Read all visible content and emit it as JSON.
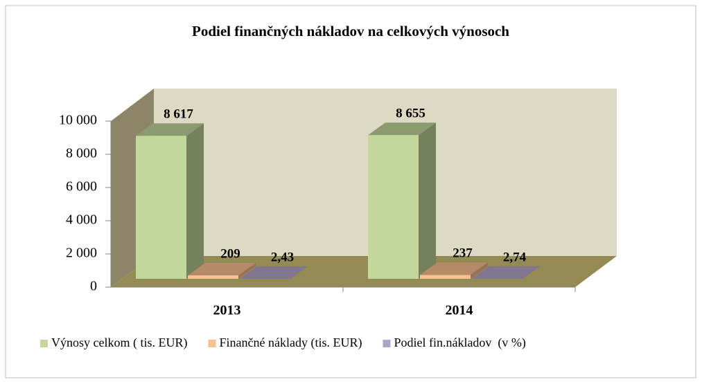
{
  "chart_data": {
    "type": "bar3d",
    "title": "Podiel finančných nákladov na celkových výnosoch",
    "categories": [
      "2013",
      "2014"
    ],
    "series": [
      {
        "name": "Výnosy celkom ( tis. EUR)",
        "color": "#c3d69b",
        "values": [
          8617,
          8655
        ],
        "value_labels": [
          "8 617",
          "8 655"
        ]
      },
      {
        "name": "Finančné náklady (tis. EUR)",
        "color": "#fac090",
        "values": [
          209,
          237
        ]
      },
      {
        "name": "Podiel fin.nákladov  (v %)",
        "color": "#b3a2c7",
        "values": [
          2.43,
          2.74
        ],
        "value_labels": [
          "2,43",
          "2,74"
        ]
      }
    ],
    "ylim": [
      0,
      10000
    ],
    "yticks": [
      0,
      {
        "value": 2000,
        "label": "2 000"
      },
      {
        "value": 4000,
        "label": "4 000"
      },
      {
        "value": 6000,
        "label": "6 000"
      },
      {
        "value": 8000,
        "label": "8 000"
      },
      {
        "value": 10000,
        "label": "10 000"
      }
    ],
    "legend": "bottom"
  }
}
